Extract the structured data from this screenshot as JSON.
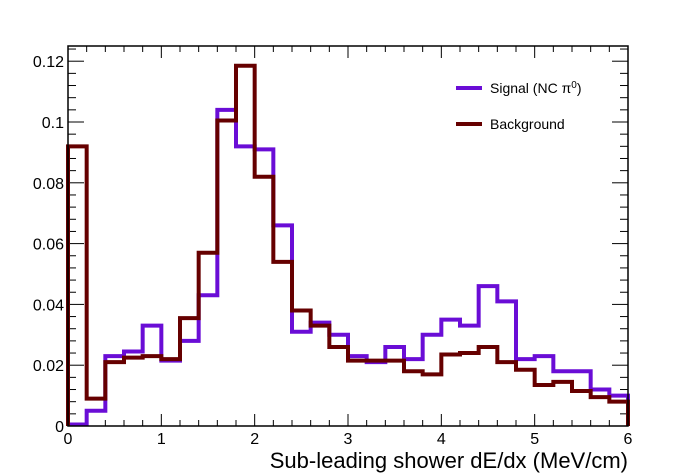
{
  "chart_data": {
    "type": "line",
    "subtype": "step-histogram",
    "xlabel": "Sub-leading shower dE/dx (MeV/cm)",
    "ylabel": "",
    "xlim": [
      0,
      6
    ],
    "ylim": [
      0,
      0.125
    ],
    "x_ticks": [
      0,
      1,
      2,
      3,
      4,
      5,
      6
    ],
    "x_tick_labels": [
      "0",
      "1",
      "2",
      "3",
      "4",
      "5",
      "6"
    ],
    "y_ticks": [
      0,
      0.02,
      0.04,
      0.06,
      0.08,
      0.1,
      0.12
    ],
    "y_tick_labels": [
      "0",
      "0.02",
      "0.04",
      "0.06",
      "0.08",
      "0.1",
      "0.12"
    ],
    "bin_edges": [
      0,
      0.2,
      0.4,
      0.6,
      0.8,
      1.0,
      1.2,
      1.4,
      1.6,
      1.8,
      2.0,
      2.2,
      2.4,
      2.6,
      2.8,
      3.0,
      3.2,
      3.4,
      3.6,
      3.8,
      4.0,
      4.2,
      4.4,
      4.6,
      4.8,
      5.0,
      5.2,
      5.4,
      5.6,
      5.8,
      6.0
    ],
    "series": [
      {
        "name": "Signal (NC π",
        "superscript": "0",
        "name_suffix": ")",
        "color": "#6a0dd6",
        "values": [
          0.0005,
          0.005,
          0.023,
          0.0245,
          0.033,
          0.0215,
          0.028,
          0.043,
          0.104,
          0.092,
          0.091,
          0.066,
          0.031,
          0.034,
          0.03,
          0.023,
          0.021,
          0.026,
          0.022,
          0.03,
          0.035,
          0.033,
          0.046,
          0.041,
          0.022,
          0.023,
          0.018,
          0.018,
          0.012,
          0.01
        ]
      },
      {
        "name": "Background",
        "color": "#660000",
        "values": [
          0.092,
          0.009,
          0.021,
          0.0225,
          0.023,
          0.022,
          0.0355,
          0.057,
          0.1005,
          0.1185,
          0.082,
          0.054,
          0.038,
          0.033,
          0.026,
          0.0215,
          0.0215,
          0.0215,
          0.018,
          0.017,
          0.0235,
          0.024,
          0.026,
          0.021,
          0.0185,
          0.0135,
          0.0145,
          0.0115,
          0.0095,
          0.008
        ]
      }
    ],
    "legend_position": "top-right",
    "grid": false
  }
}
